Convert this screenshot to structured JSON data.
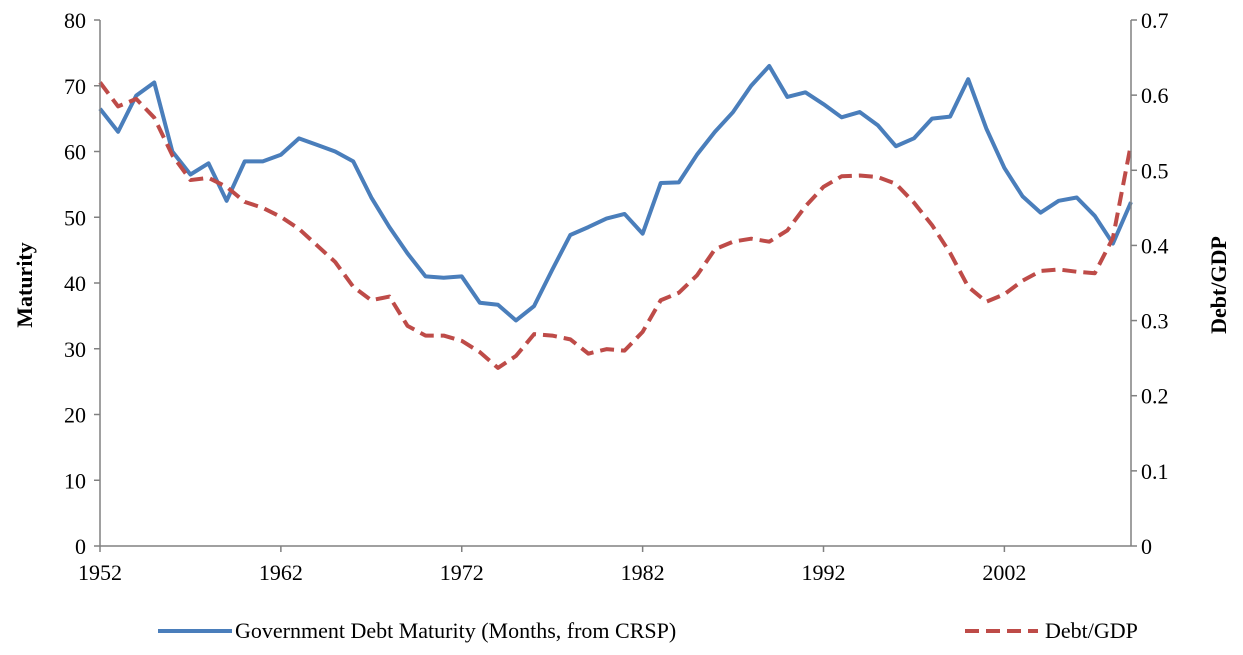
{
  "chart_data": {
    "type": "line",
    "title": "",
    "xlabel": "",
    "ylabel": "Maturity",
    "y2label": "Debt/GDP",
    "xlim": [
      1952,
      2009
    ],
    "ylim": [
      0,
      80
    ],
    "y2lim": [
      0,
      0.7
    ],
    "x_ticks": [
      "1952",
      "1962",
      "1972",
      "1982",
      "1992",
      "2002"
    ],
    "x_tick_values": [
      1952,
      1962,
      1972,
      1982,
      1992,
      2002
    ],
    "y_ticks": [
      "0",
      "10",
      "20",
      "30",
      "40",
      "50",
      "60",
      "70",
      "80"
    ],
    "y_tick_values": [
      0,
      10,
      20,
      30,
      40,
      50,
      60,
      70,
      80
    ],
    "y2_ticks": [
      "0",
      "0.1",
      "0.2",
      "0.3",
      "0.4",
      "0.5",
      "0.6",
      "0.7"
    ],
    "y2_tick_values": [
      0,
      0.1,
      0.2,
      0.3,
      0.4,
      0.5,
      0.6,
      0.7
    ],
    "grid": false,
    "legend_position": "bottom",
    "x": [
      1952,
      1953,
      1954,
      1955,
      1956,
      1957,
      1958,
      1959,
      1960,
      1961,
      1962,
      1963,
      1964,
      1965,
      1966,
      1967,
      1968,
      1969,
      1970,
      1971,
      1972,
      1973,
      1974,
      1975,
      1976,
      1977,
      1978,
      1979,
      1980,
      1981,
      1982,
      1983,
      1984,
      1985,
      1986,
      1987,
      1988,
      1989,
      1990,
      1991,
      1992,
      1993,
      1994,
      1995,
      1996,
      1997,
      1998,
      1999,
      2000,
      2001,
      2002,
      2003,
      2004,
      2005,
      2006,
      2007,
      2008,
      2009
    ],
    "series": [
      {
        "name": "Government Debt Maturity (Months, from CRSP)",
        "axis": "left",
        "color": "#4a7ebb",
        "dash": "solid",
        "values": [
          66.5,
          63.0,
          68.5,
          70.5,
          60.0,
          56.5,
          58.2,
          52.5,
          58.5,
          58.5,
          59.5,
          62.0,
          61.0,
          60.0,
          58.5,
          53.0,
          48.5,
          44.5,
          41.0,
          40.8,
          41.0,
          37.0,
          36.7,
          34.3,
          36.5,
          42.0,
          47.3,
          48.5,
          49.8,
          50.5,
          47.5,
          55.2,
          55.3,
          59.5,
          63.0,
          66.0,
          70.0,
          73.0,
          68.3,
          69.0,
          67.2,
          65.2,
          66.0,
          64.0,
          60.8,
          62.0,
          65.0,
          65.3,
          71.0,
          63.5,
          57.5,
          53.2,
          50.7,
          52.5,
          53.0,
          50.2,
          46.0,
          52.3
        ]
      },
      {
        "name": "Debt/GDP",
        "axis": "right",
        "color": "#be4b48",
        "dash": "dashed",
        "values": [
          0.617,
          0.585,
          0.595,
          0.57,
          0.52,
          0.487,
          0.49,
          0.478,
          0.458,
          0.45,
          0.438,
          0.422,
          0.4,
          0.378,
          0.345,
          0.327,
          0.332,
          0.293,
          0.28,
          0.28,
          0.273,
          0.258,
          0.237,
          0.253,
          0.282,
          0.28,
          0.275,
          0.256,
          0.262,
          0.26,
          0.285,
          0.327,
          0.337,
          0.36,
          0.395,
          0.405,
          0.409,
          0.405,
          0.42,
          0.452,
          0.478,
          0.492,
          0.493,
          0.491,
          0.482,
          0.457,
          0.427,
          0.39,
          0.345,
          0.325,
          0.335,
          0.353,
          0.366,
          0.368,
          0.365,
          0.363,
          0.41,
          0.535
        ]
      }
    ]
  }
}
